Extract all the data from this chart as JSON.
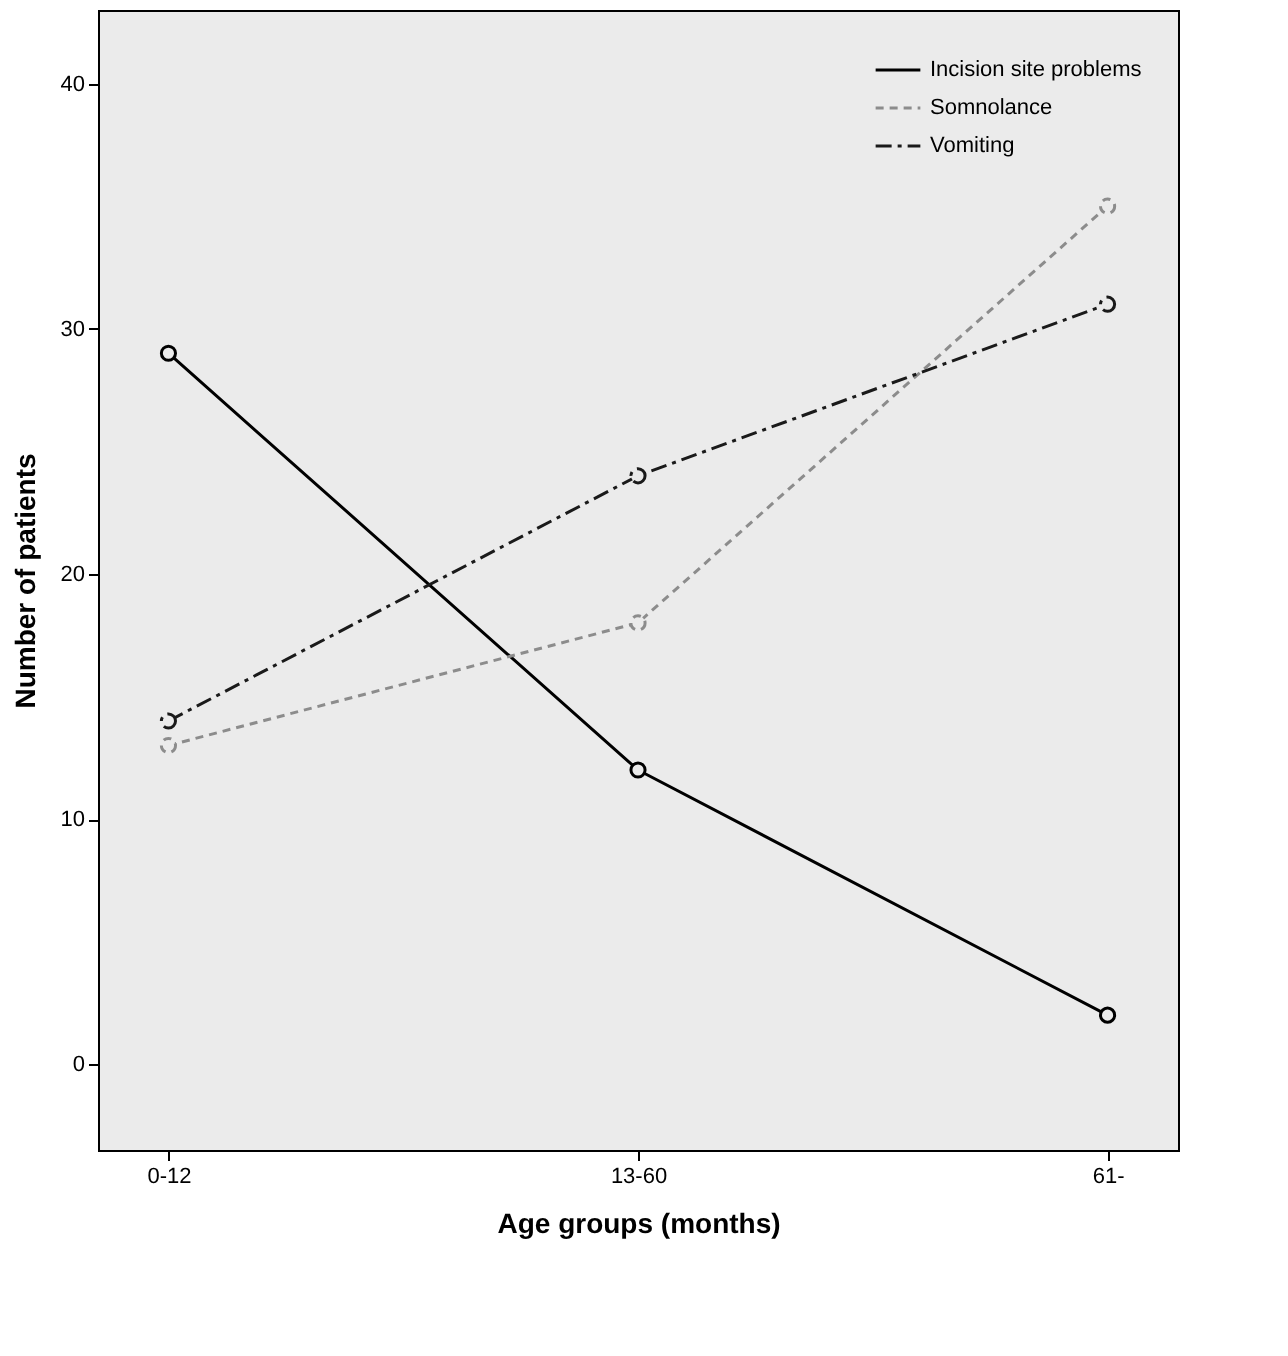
{
  "chart_data": {
    "type": "line",
    "xlabel": "Age groups (months)",
    "ylabel": "Number of patients",
    "categories": [
      "0-12",
      "13-60",
      "61-"
    ],
    "series": [
      {
        "name": "Incision site problems",
        "color": "#000000",
        "values": [
          29,
          12,
          2
        ],
        "line_style": "solid"
      },
      {
        "name": "Somnolance",
        "color": "#8c8c8c",
        "values": [
          13,
          18,
          35
        ],
        "line_style": "dashed"
      },
      {
        "name": "Vomiting",
        "color": "#1a1a1a",
        "values": [
          14,
          24,
          31
        ],
        "line_style": "dashdot"
      }
    ],
    "ylim": [
      -3.5,
      43
    ],
    "yticks": [
      0,
      10,
      20,
      30,
      40
    ],
    "grid": false,
    "legend": "top right",
    "marker": "circle"
  }
}
